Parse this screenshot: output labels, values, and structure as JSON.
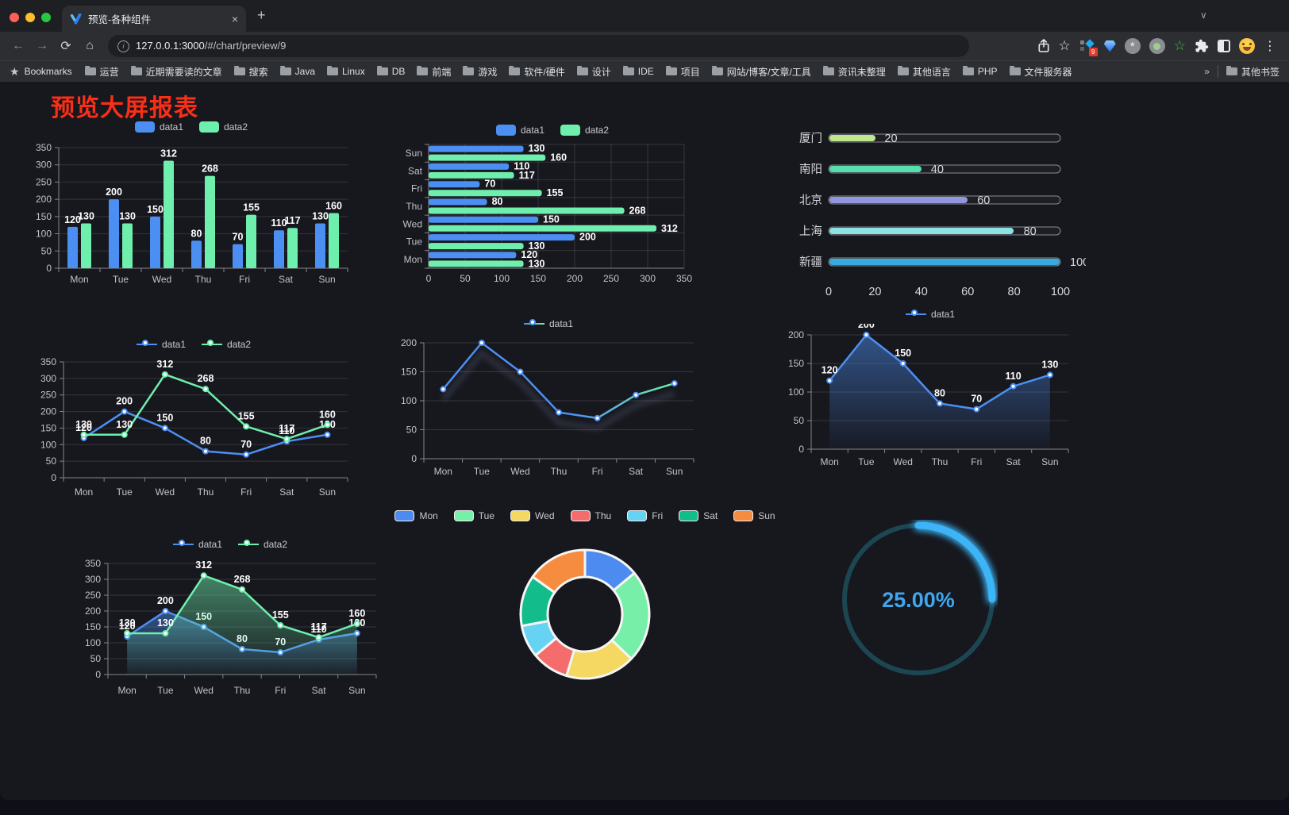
{
  "browser": {
    "tab_title": "预览-各种组件",
    "tab_close_glyph": "×",
    "new_tab_glyph": "+",
    "chevron_glyph": "∨",
    "back_glyph": "←",
    "forward_glyph": "→",
    "reload_glyph": "⟳",
    "home_glyph": "⌂",
    "info_glyph": "i",
    "url_host": "127.0.0.1:3000",
    "url_path": "/#/chart/preview/9",
    "star_glyph": "☆",
    "extension_badge": "9",
    "asterisk_glyph": "*",
    "green_star_glyph": "☆",
    "menu_glyph": "⋮",
    "bookmarks_label": "Bookmarks",
    "bookmark_star_glyph": "★",
    "bookmarks": [
      "运营",
      "近期需要读的文章",
      "搜索",
      "Java",
      "Linux",
      "DB",
      "前端",
      "游戏",
      "软件/硬件",
      "设计",
      "IDE",
      "项目",
      "网站/博客/文章/工具",
      "资讯未整理",
      "其他语言",
      "PHP",
      "文件服务器"
    ],
    "overflow_glyph": "»",
    "other_bookmarks": "其他书签"
  },
  "page": {
    "title": "预览大屏报表",
    "title_color": "#F92F17"
  },
  "chart_data": [
    {
      "id": "c1",
      "name": "grouped-bar-chart",
      "type": "bar",
      "categories": [
        "Mon",
        "Tue",
        "Wed",
        "Thu",
        "Fri",
        "Sat",
        "Sun"
      ],
      "series": [
        {
          "name": "data1",
          "color": "#4C8FF2",
          "values": [
            120,
            200,
            150,
            80,
            70,
            110,
            130
          ]
        },
        {
          "name": "data2",
          "color": "#6FEFAD",
          "values": [
            130,
            130,
            312,
            268,
            155,
            117,
            160
          ]
        }
      ],
      "ylim": [
        0,
        350
      ],
      "ytick": 50,
      "legend_position": "top",
      "grid": true,
      "labels": true
    },
    {
      "id": "c2",
      "name": "horizontal-bar-chart",
      "type": "bar-horizontal",
      "categories": [
        "Mon",
        "Tue",
        "Wed",
        "Thu",
        "Fri",
        "Sat",
        "Sun"
      ],
      "series": [
        {
          "name": "data1",
          "color": "#4C8FF2",
          "values": [
            120,
            200,
            150,
            80,
            70,
            110,
            130
          ]
        },
        {
          "name": "data2",
          "color": "#6FEFAD",
          "values": [
            130,
            130,
            312,
            268,
            155,
            117,
            160
          ]
        }
      ],
      "xlim": [
        0,
        350
      ],
      "xtick": 50,
      "legend_position": "top",
      "grid": true,
      "labels": true
    },
    {
      "id": "c3",
      "name": "progress-bar-chart",
      "type": "progress",
      "categories": [
        "厦门",
        "南阳",
        "北京",
        "上海",
        "新疆"
      ],
      "values": [
        20,
        40,
        60,
        80,
        100
      ],
      "colors": [
        "#BDE98C",
        "#55DFAC",
        "#9097DE",
        "#8BE3E3",
        "#38ABDE"
      ],
      "xlim": [
        0,
        100
      ],
      "xtick": 20
    },
    {
      "id": "c4",
      "name": "dual-line-chart",
      "type": "line",
      "categories": [
        "Mon",
        "Tue",
        "Wed",
        "Thu",
        "Fri",
        "Sat",
        "Sun"
      ],
      "series": [
        {
          "name": "data1",
          "color": "#4C8FF2",
          "values": [
            120,
            200,
            150,
            80,
            70,
            110,
            130
          ]
        },
        {
          "name": "data2",
          "color": "#6FEFAD",
          "values": [
            130,
            130,
            312,
            268,
            155,
            117,
            160
          ]
        }
      ],
      "ylim": [
        0,
        350
      ],
      "ytick": 50,
      "labels": true,
      "legend_position": "top"
    },
    {
      "id": "c5",
      "name": "gradient-line-chart",
      "type": "line",
      "categories": [
        "Mon",
        "Tue",
        "Wed",
        "Thu",
        "Fri",
        "Sat",
        "Sun"
      ],
      "series": [
        {
          "name": "data1",
          "color": "#4C8FF2",
          "color2": "#6FEFAD",
          "values": [
            120,
            200,
            150,
            80,
            70,
            110,
            130
          ]
        }
      ],
      "ylim": [
        0,
        200
      ],
      "ytick": 50,
      "labels": false,
      "shadow": true,
      "legend_position": "top"
    },
    {
      "id": "c6",
      "name": "area-line-chart",
      "type": "area",
      "categories": [
        "Mon",
        "Tue",
        "Wed",
        "Thu",
        "Fri",
        "Sat",
        "Sun"
      ],
      "series": [
        {
          "name": "data1",
          "color": "#4C8FF2",
          "values": [
            120,
            200,
            150,
            80,
            70,
            110,
            130
          ]
        }
      ],
      "ylim": [
        0,
        200
      ],
      "ytick": 50,
      "labels": true,
      "legend_position": "top"
    },
    {
      "id": "c7",
      "name": "dual-area-chart",
      "type": "area",
      "categories": [
        "Mon",
        "Tue",
        "Wed",
        "Thu",
        "Fri",
        "Sat",
        "Sun"
      ],
      "series": [
        {
          "name": "data1",
          "color": "#4C8FF2",
          "values": [
            120,
            200,
            150,
            80,
            70,
            110,
            130
          ]
        },
        {
          "name": "data2",
          "color": "#6FEFAD",
          "values": [
            130,
            130,
            312,
            268,
            155,
            117,
            160
          ]
        }
      ],
      "ylim": [
        0,
        350
      ],
      "ytick": 50,
      "labels": true,
      "legend_position": "top"
    },
    {
      "id": "c8",
      "name": "donut-chart",
      "type": "pie",
      "categories": [
        "Mon",
        "Tue",
        "Wed",
        "Thu",
        "Fri",
        "Sat",
        "Sun"
      ],
      "values": [
        120,
        200,
        150,
        80,
        70,
        110,
        130
      ],
      "colors": [
        "#4E8BF0",
        "#77EFA9",
        "#F5D862",
        "#F56C6C",
        "#66D3F2",
        "#12BD8B",
        "#F68C3F"
      ],
      "inner_ratio": 0.58,
      "legend_position": "top"
    },
    {
      "id": "c9",
      "name": "gauge-chart",
      "type": "gauge",
      "value": 25,
      "label": "25.00%",
      "color": "#3CB4F5",
      "track_color": "#1C4652",
      "text_color": "#3FA7F0"
    }
  ]
}
